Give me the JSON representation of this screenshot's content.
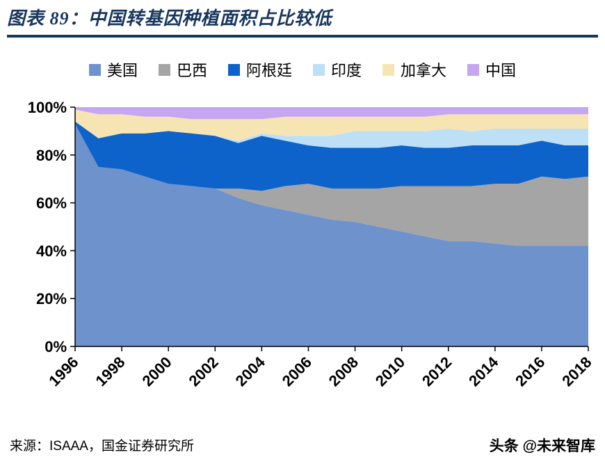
{
  "header": {
    "title": "图表 89：中国转基因种植面积占比较低"
  },
  "footer": {
    "source": "来源：ISAAA，国金证券研究所",
    "credit": "头条 @未来智库"
  },
  "chart_data": {
    "type": "area",
    "stacked": true,
    "percent": true,
    "title": "图表 89：中国转基因种植面积占比较低",
    "xlabel": "",
    "ylabel": "",
    "ylim": [
      0,
      100
    ],
    "grid": false,
    "legend_position": "top",
    "y_ticks": [
      "0%",
      "20%",
      "40%",
      "60%",
      "80%",
      "100%"
    ],
    "x": [
      1996,
      1997,
      1998,
      1999,
      2000,
      2001,
      2002,
      2003,
      2004,
      2005,
      2006,
      2007,
      2008,
      2009,
      2010,
      2011,
      2012,
      2013,
      2014,
      2015,
      2016,
      2017,
      2018
    ],
    "x_tick_labels": [
      "1996",
      "1998",
      "2000",
      "2002",
      "2004",
      "2006",
      "2008",
      "2010",
      "2012",
      "2014",
      "2016",
      "2018"
    ],
    "series": [
      {
        "name": "美国",
        "color": "#6D92CC",
        "values": [
          93,
          75,
          74,
          71,
          68,
          67,
          66,
          62,
          59,
          57,
          55,
          53,
          52,
          50,
          48,
          46,
          44,
          44,
          43,
          42,
          42,
          42,
          42
        ]
      },
      {
        "name": "巴西",
        "color": "#A5A5A5",
        "values": [
          0,
          0,
          0,
          0,
          0,
          0,
          0,
          4,
          6,
          10,
          13,
          13,
          14,
          16,
          19,
          21,
          23,
          23,
          25,
          26,
          29,
          28,
          29
        ]
      },
      {
        "name": "阿根廷",
        "color": "#0D63C9",
        "values": [
          1,
          12,
          15,
          18,
          22,
          22,
          22,
          19,
          23,
          19,
          16,
          17,
          17,
          17,
          17,
          16,
          16,
          17,
          16,
          16,
          15,
          14,
          13
        ]
      },
      {
        "name": "印度",
        "color": "#BDE0F6",
        "values": [
          0,
          0,
          0,
          0,
          0,
          0,
          0,
          1,
          1,
          2,
          4,
          5,
          7,
          7,
          6,
          7,
          8,
          6,
          7,
          7,
          5,
          7,
          7
        ]
      },
      {
        "name": "加拿大",
        "color": "#F6E5B3",
        "values": [
          5,
          10,
          8,
          7,
          6,
          6,
          7,
          9,
          6,
          8,
          8,
          8,
          6,
          6,
          6,
          6,
          6,
          7,
          6,
          6,
          6,
          6,
          6
        ]
      },
      {
        "name": "中国",
        "color": "#C5A6F0",
        "values": [
          1,
          3,
          3,
          4,
          4,
          5,
          5,
          5,
          5,
          4,
          4,
          4,
          4,
          4,
          4,
          4,
          3,
          3,
          3,
          3,
          3,
          3,
          3
        ]
      }
    ]
  }
}
